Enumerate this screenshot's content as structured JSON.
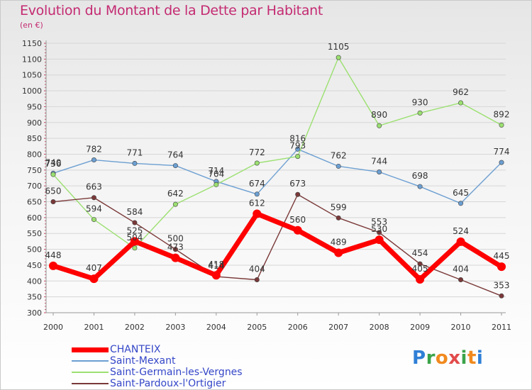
{
  "title": "Evolution du Montant de la Dette par Habitant",
  "unit": "(en €)",
  "logo": {
    "parts": [
      "P",
      "r",
      "o",
      "x",
      "i",
      "t",
      "i"
    ],
    "colors": [
      "#2e7fd6",
      "#3aa34a",
      "#f18a1f",
      "#e24b4b",
      "#3aa34a",
      "#f18a1f",
      "#2e7fd6"
    ]
  },
  "chart_data": {
    "type": "line",
    "title": "Evolution du Montant de la Dette par Habitant",
    "ylabel": "(en €)",
    "x": [
      "2000",
      "2001",
      "2002",
      "2003",
      "2004",
      "2005",
      "2006",
      "2007",
      "2008",
      "2009",
      "2010",
      "2011"
    ],
    "ylim": [
      300,
      1150
    ],
    "yticks": [
      300,
      350,
      400,
      450,
      500,
      550,
      600,
      650,
      700,
      750,
      800,
      850,
      900,
      950,
      1000,
      1050,
      1100,
      1150
    ],
    "legend_position": "bottom-left",
    "series": [
      {
        "name": "CHANTEIX",
        "color": "#ff0000",
        "values": [
          448,
          407,
          525,
          473,
          418,
          612,
          560,
          489,
          530,
          405,
          524,
          445
        ],
        "labels": [
          "448",
          "407",
          "525",
          "473",
          "418",
          "612",
          "560",
          "489",
          "530",
          "405",
          "524",
          "445"
        ]
      },
      {
        "name": "Saint-Mexant",
        "color": "#6c9fd2",
        "values": [
          740,
          782,
          771,
          764,
          714,
          674,
          816,
          762,
          744,
          698,
          645,
          774
        ],
        "labels": [
          "740",
          "782",
          "771",
          "764",
          "714",
          "674",
          "816",
          "762",
          "744",
          "698",
          "645",
          "774"
        ]
      },
      {
        "name": "Saint-Germain-les-Vergnes",
        "color": "#9be070",
        "values": [
          736,
          594,
          504,
          642,
          704,
          772,
          793,
          1105,
          890,
          930,
          962,
          892
        ],
        "labels": [
          "736",
          "594",
          "504",
          "642",
          "704",
          "772",
          "793",
          "1105",
          "890",
          "930",
          "962",
          "892"
        ]
      },
      {
        "name": "Saint-Pardoux-l'Ortigier",
        "color": "#7a3838",
        "values": [
          650,
          663,
          584,
          500,
          414,
          404,
          673,
          599,
          553,
          454,
          404,
          353
        ],
        "labels": [
          "650",
          "663",
          "584",
          "500",
          "414",
          "404",
          "673",
          "599",
          "553",
          "454",
          "404",
          "353"
        ]
      }
    ]
  }
}
